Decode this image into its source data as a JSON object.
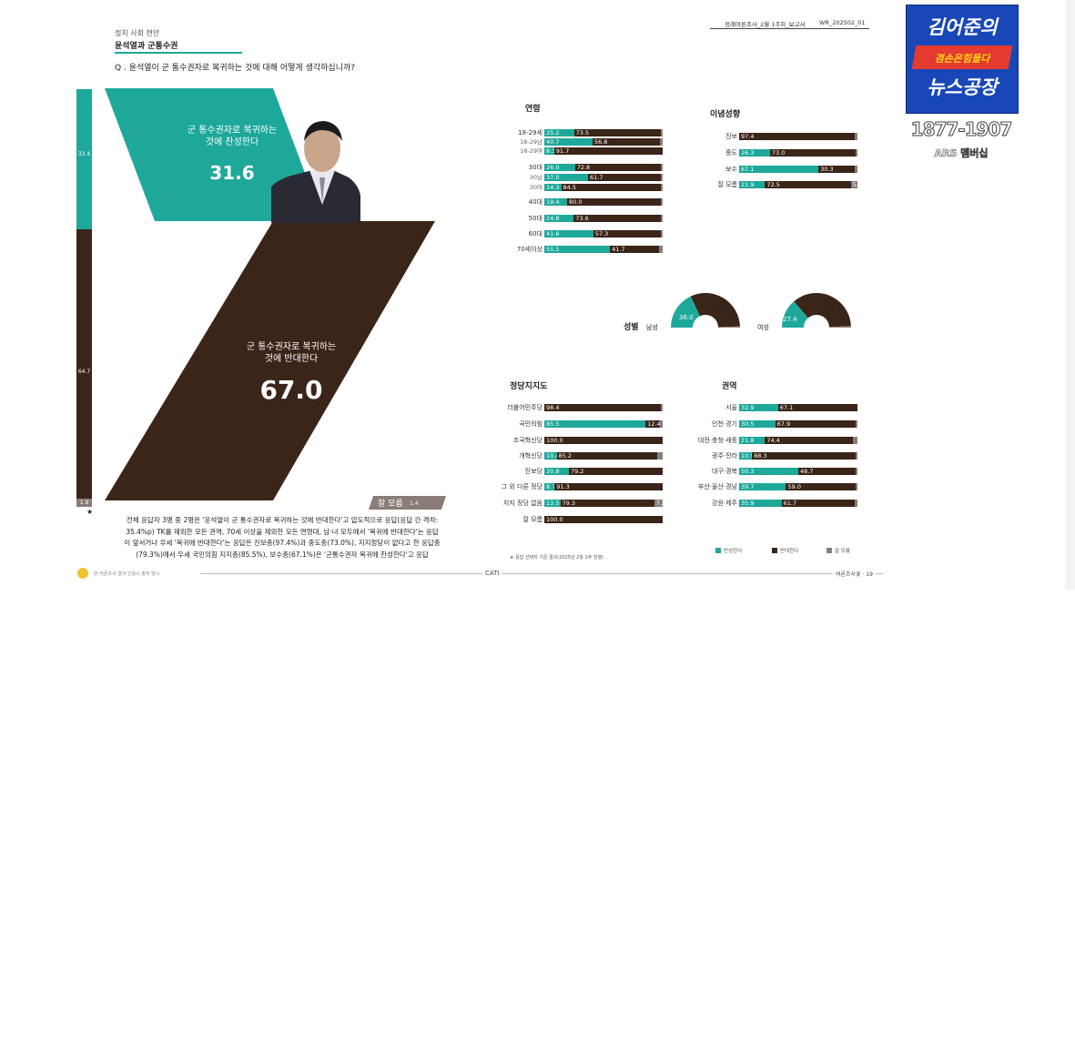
{
  "header": {
    "report_title": "정례여론조사_2월 1주차_보고서",
    "report_code": "WR_202502_01",
    "section_label": "정치 사회 현안",
    "topic": "윤석열과 군통수권",
    "question": "Q . 윤석열이 군 통수권자로 복귀하는 것에 대해 어떻게 생각하십니까?"
  },
  "left_chart": {
    "side_values": [
      "33.4",
      "64.7",
      "1.9"
    ],
    "agree_label": "군 통수권자로 복귀하는 것에 찬성한다",
    "agree_value": "31.6",
    "oppose_label": "군 통수권자로 복귀하는 것에 반대한다",
    "oppose_value": "67.0",
    "dontknow_label": "잘 모름",
    "dontknow_value": "1.4",
    "star": "★"
  },
  "summary_text": "전체 응답자 3명 중 2명은 '윤석열이 군 통수권자로 복귀하는 것에 반대한다'고 압도적으로 응답(응답 간 격차: 35.4%p) TK를 제외한 모든 권역, 70세 이상을 제외한 모든 연령대, 남·녀 모두에서 '복귀에 반대한다'는 응답이 앞서거나 우세 '복귀에 반대한다'는 응답은 진보층(97.4%)과 중도층(73.0%), 지지정당이 없다고 한 응답층(79.3%)에서 우세 국민의힘 지지층(85.5%), 보수층(67.1%)은 '군통수권자 복귀에 찬성한다'고 응답",
  "footer": {
    "left_note": "본 여론조사 결과 인용시 출처 명시",
    "center": "CATI",
    "right": "여론조사꽃 · 19"
  },
  "colors": {
    "agree": "#1ea89a",
    "oppose": "#3b2418",
    "dontknow": "#8a7d78"
  },
  "sections": {
    "age": {
      "title": "연령",
      "rows": [
        {
          "label": "18-29세",
          "agree": 25.2,
          "oppose": 73.5,
          "dk": 1.3,
          "sub": false
        },
        {
          "label": "18-29남",
          "agree": 40.7,
          "oppose": 56.8,
          "dk": 2.5,
          "sub": true
        },
        {
          "label": "18-29여",
          "agree": 8.3,
          "oppose": 91.7,
          "dk": 0,
          "agree_txt": "8.3",
          "sub": true
        },
        {
          "label": "30대",
          "agree": 26.0,
          "oppose": 72.8,
          "dk": 1.2,
          "sub": false
        },
        {
          "label": "30남",
          "agree": 37.0,
          "oppose": 61.7,
          "dk": 1.3,
          "sub": true
        },
        {
          "label": "30여",
          "agree": 14.3,
          "oppose": 84.5,
          "dk": 1.2,
          "sub": true
        },
        {
          "label": "40대",
          "agree": 19.4,
          "oppose": 80.0,
          "dk": 0.6,
          "sub": false
        },
        {
          "label": "50대",
          "agree": 24.8,
          "oppose": 73.6,
          "dk": 1.6,
          "sub": false
        },
        {
          "label": "60대",
          "agree": 41.6,
          "oppose": 57.3,
          "dk": 1.1,
          "sub": false
        },
        {
          "label": "70세이상",
          "agree": 55.5,
          "oppose": 41.7,
          "dk": 2.8,
          "sub": false
        }
      ]
    },
    "ideology": {
      "title": "이념성향",
      "rows": [
        {
          "label": "진보",
          "agree": 0,
          "oppose": 97.4,
          "dk": 2.6
        },
        {
          "label": "중도",
          "agree": 26.3,
          "oppose": 73.0,
          "dk": 0.7
        },
        {
          "label": "보수",
          "agree": 67.1,
          "oppose": 30.3,
          "dk": 2.6
        },
        {
          "label": "잘 모름",
          "agree": 21.9,
          "oppose": 72.5,
          "dk": 5.6
        }
      ]
    },
    "gender": {
      "title": "성별",
      "male_label": "남성",
      "female_label": "여성",
      "male": {
        "agree": 36.0,
        "oppose": 62.8
      },
      "female": {
        "agree": 27.4,
        "oppose": 71.1
      }
    },
    "party": {
      "title": "정당지지도",
      "rows": [
        {
          "label": "더불어민주당",
          "agree": 0,
          "oppose": 98.4,
          "dk": 1.6
        },
        {
          "label": "국민의힘",
          "agree": 85.5,
          "oppose": 12.4,
          "dk": 2.1
        },
        {
          "label": "조국혁신당",
          "agree": 0,
          "oppose": 100.0,
          "dk": 0
        },
        {
          "label": "개혁신당",
          "agree": 10.4,
          "oppose": 85.2,
          "dk": 4.4
        },
        {
          "label": "진보당",
          "agree": 20.8,
          "oppose": 79.2,
          "dk": 0
        },
        {
          "label": "그 외 다른 정당",
          "agree": 8.7,
          "oppose": 91.3,
          "dk": 0
        },
        {
          "label": "지지 정당 없음",
          "agree": 13.5,
          "oppose": 79.3,
          "dk": 7.2
        },
        {
          "label": "잘 모름",
          "agree": 0,
          "oppose": 100.0,
          "dk": 0
        }
      ]
    },
    "region": {
      "title": "권역",
      "rows": [
        {
          "label": "서울",
          "agree": 32.9,
          "oppose": 67.1,
          "dk": 0
        },
        {
          "label": "인천·경기",
          "agree": 30.5,
          "oppose": 67.9,
          "dk": 1.6
        },
        {
          "label": "대전·충청·세종",
          "agree": 21.8,
          "oppose": 74.4,
          "dk": 3.8
        },
        {
          "label": "광주·전라",
          "agree": 10.9,
          "oppose": 88.3,
          "dk": 0.8
        },
        {
          "label": "대구·경북",
          "agree": 50.3,
          "oppose": 48.7,
          "dk": 1.0
        },
        {
          "label": "부산·울산·경남",
          "agree": 39.7,
          "oppose": 59.0,
          "dk": 1.3
        },
        {
          "label": "강원·제주",
          "agree": 35.9,
          "oppose": 61.7,
          "dk": 2.4
        }
      ]
    }
  },
  "legend": {
    "agree": "찬성한다",
    "oppose": "반대한다",
    "dontknow": "잘 모름"
  },
  "source_note": "★ 응답 선택지 기준 결과(2025년 2월 1주 진행)",
  "banner": {
    "line1": "김어준의",
    "line2": "겸손은힘들다",
    "line3": "뉴스공장",
    "phone": "1877-1907",
    "ars": "ARS 멤버십"
  }
}
